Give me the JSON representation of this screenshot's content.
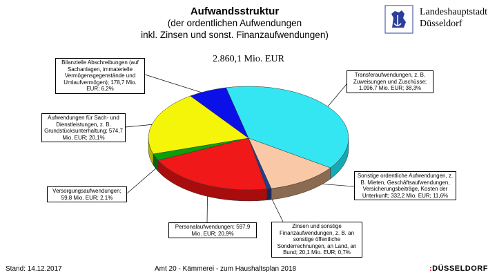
{
  "header": {
    "title": "Aufwandsstruktur",
    "subtitle1": "(der ordentlichen Aufwendungen",
    "subtitle2": "inkl. Zinsen und sonst. Finanzaufwendungen)",
    "total": "2.860,1 Mio. EUR",
    "city_line1": "Landeshauptstadt",
    "city_line2": "Düsseldorf"
  },
  "footer": {
    "date": "Stand: 14.12.2017",
    "source": "Amt 20 - Kämmerei - zum Haushaltsplan 2018",
    "logo_mark": ":",
    "logo_text": "DÜSSELDORF"
  },
  "chart_data": {
    "type": "pie",
    "title": "Aufwandsstruktur",
    "total": 2860.1,
    "unit": "Mio. EUR",
    "slices": [
      {
        "label": "Transferaufwendungen, z. B. Zuweisungen und Zuschüsse; 1.096,7 Mio. EUR; 38,3%",
        "value": 1096.7,
        "percent": 38.3,
        "color": "#33e6f2",
        "side": "#14a9b3"
      },
      {
        "label": "Sonstige ordentliche Aufwendungen, z. B. Mieten, Geschäftsaufwendungen, Versicherungsbeiträge, Kosten der Unterkunft; 332,2 Mio. EUR; 11,6%",
        "value": 332.2,
        "percent": 11.6,
        "color": "#f9c8a6",
        "side": "#8a6a50"
      },
      {
        "label": "Zinsen und sonstige Finanzaufwendungen, z. B. an sonstige öffentliche Sonderrechnungen, an Land, an Bund; 20,1 Mio. EUR; 0,7%",
        "value": 20.1,
        "percent": 0.7,
        "color": "#1f3f8f",
        "side": "#15295c"
      },
      {
        "label": "Personalaufwendungen; 597,9 Mio. EUR; 20,9%",
        "value": 597.9,
        "percent": 20.9,
        "color": "#f01818",
        "side": "#a80d0d"
      },
      {
        "label": "Versorgungsaufwendungen; 59,8 Mio. EUR; 2,1%",
        "value": 59.8,
        "percent": 2.1,
        "color": "#0aa00a",
        "side": "#066606"
      },
      {
        "label": "Aufwendungen für Sach- und Dienstleistungen, z. B. Grundstücksunterhaltung; 574,7 Mio. EUR; 20,1%",
        "value": 574.7,
        "percent": 20.1,
        "color": "#f5f50a",
        "side": "#b4b400"
      },
      {
        "label": "Bilanzielle Abschreibungen (auf Sachanlagen, immaterielle Vermögensgegenstände und Umlaufvermögen); 178,7 Mio. EUR; 6,2%",
        "value": 178.7,
        "percent": 6.2,
        "color": "#0b10e8",
        "side": "#0508a0"
      }
    ]
  }
}
